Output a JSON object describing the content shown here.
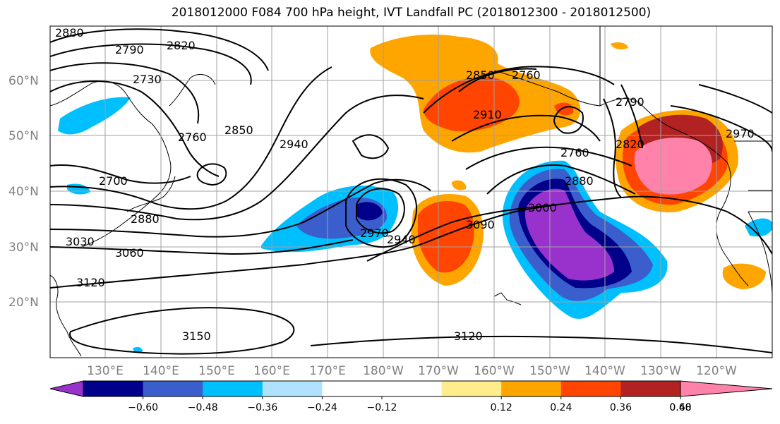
{
  "title": "2018012000 F084 700 hPa height, IVT Landfall PC (2018012300 - 2018012500)",
  "lat_labels": [
    "60°N",
    "50°N",
    "40°N",
    "30°N",
    "20°N"
  ],
  "lon_labels": [
    "130°E",
    "140°E",
    "150°E",
    "160°E",
    "170°E",
    "180°W",
    "170°W",
    "160°W",
    "150°W",
    "140°W",
    "130°W",
    "120°W"
  ],
  "contour_labels": [
    "2880",
    "2790",
    "2820",
    "2730",
    "2760",
    "2850",
    "2940",
    "2700",
    "2880",
    "3030",
    "3060",
    "3120",
    "2970",
    "2940",
    "3090",
    "3000",
    "2880",
    "2760",
    "2760",
    "2850",
    "2910",
    "2790",
    "2820",
    "2970",
    "3150",
    "3120"
  ],
  "colorbar": {
    "colors": [
      "#9932CC",
      "#00008B",
      "#3A5FCD",
      "#00BFFF",
      "#B0E2FF",
      "#FFFFFF",
      "#FFFFFF",
      "#FFEC8B",
      "#FFA500",
      "#FF4500",
      "#B22222",
      "#FF82AB"
    ],
    "tick_labels": [
      "−0.60",
      "−0.48",
      "−0.36",
      "−0.24",
      "−0.12",
      "0.12",
      "0.24",
      "0.36",
      "0.48",
      "0.60"
    ]
  },
  "map_extent": {
    "lon_west": "120°E",
    "lon_east": "112°W",
    "lat_south": "10°N",
    "lat_north": "70°N"
  }
}
